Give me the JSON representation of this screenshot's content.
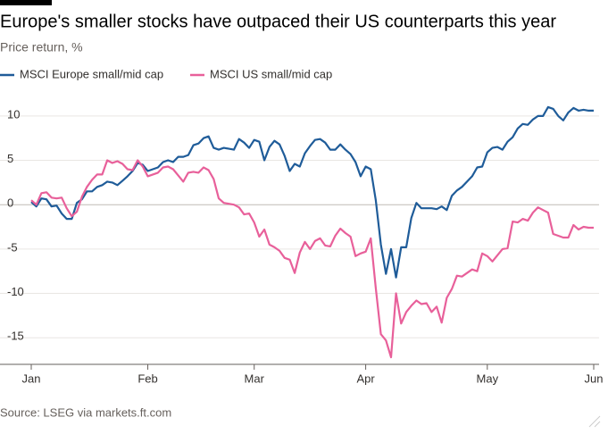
{
  "chart_data": {
    "type": "line",
    "title": "Europe's smaller stocks have outpaced their US counterparts this year",
    "subtitle": "Price return, %",
    "source": "Source: LSEG via markets.ft.com",
    "categories": [
      "Jan",
      null,
      null,
      null,
      null,
      null,
      null,
      null,
      null,
      null,
      null,
      null,
      null,
      null,
      null,
      null,
      null,
      null,
      null,
      null,
      null,
      null,
      null,
      "Feb",
      null,
      null,
      null,
      null,
      null,
      null,
      null,
      null,
      null,
      null,
      null,
      null,
      null,
      null,
      null,
      null,
      null,
      null,
      null,
      null,
      "Mar",
      null,
      null,
      null,
      null,
      null,
      null,
      null,
      null,
      null,
      null,
      null,
      null,
      null,
      null,
      null,
      null,
      null,
      null,
      null,
      null,
      null,
      "Apr",
      null,
      null,
      null,
      null,
      null,
      null,
      null,
      null,
      null,
      null,
      null,
      null,
      null,
      null,
      null,
      null,
      null,
      null,
      null,
      null,
      null,
      null,
      null,
      "May",
      null,
      null,
      null,
      null,
      null,
      null,
      null,
      null,
      null,
      null,
      null,
      null,
      null,
      null,
      null,
      null,
      null,
      null,
      null,
      null,
      "Jun"
    ],
    "series": [
      {
        "name": "MSCI Europe small/mid cap",
        "color": "#1f5c99",
        "values": [
          0.3,
          -0.2,
          0.7,
          0.6,
          -0.2,
          -0.1,
          -1,
          -1.6,
          -1.6,
          0.2,
          0.6,
          1.5,
          1.5,
          2,
          2.2,
          2.6,
          2.5,
          2.2,
          2.7,
          3.2,
          3.8,
          4.7,
          4.5,
          3.8,
          4,
          4.2,
          4.8,
          5,
          4.8,
          5.4,
          5.4,
          5.6,
          6.7,
          6.9,
          7.5,
          7.7,
          6.4,
          6.2,
          6.4,
          6.3,
          6.2,
          7.4,
          7,
          6.4,
          7.3,
          7.1,
          5,
          6.5,
          7.2,
          6.8,
          5.5,
          3.8,
          4.6,
          4.3,
          5.8,
          6.6,
          7.3,
          7.4,
          7,
          6.2,
          6.2,
          6.8,
          6.2,
          5.7,
          4.8,
          3.2,
          4.3,
          4,
          0.5,
          -4.5,
          -7.8,
          -5,
          -8.2,
          -4.8,
          -4.8,
          -1.5,
          0.2,
          -0.4,
          -0.4,
          -0.4,
          -0.5,
          -0.2,
          -0.6,
          1,
          1.6,
          2,
          2.6,
          3.2,
          4.2,
          4.3,
          5.9,
          6.4,
          6.5,
          6.2,
          7.1,
          7.6,
          8.6,
          9.1,
          9,
          9.6,
          10,
          10,
          11,
          10.8,
          10,
          9.5,
          10.4,
          10.9,
          10.6,
          10.7,
          10.6,
          10.6
        ]
      },
      {
        "name": "MSCI US small/mid cap",
        "color": "#e8609a",
        "values": [
          0.5,
          0,
          1.3,
          1.4,
          0.8,
          0.7,
          0.8,
          -0.4,
          -1.3,
          -0.8,
          0.9,
          2,
          2.8,
          3.4,
          3.4,
          5,
          4.7,
          4.9,
          4.6,
          4,
          3.9,
          5,
          4.3,
          3.2,
          3.4,
          3.6,
          4.2,
          4.3,
          4,
          3.3,
          2.6,
          3.6,
          3.7,
          3.6,
          4.2,
          3.9,
          2.9,
          0.7,
          0.2,
          0.1,
          0,
          -0.3,
          -1.1,
          -1,
          -2,
          -3.6,
          -2.8,
          -4.5,
          -4.8,
          -5.2,
          -6,
          -6.2,
          -7.7,
          -5.4,
          -4.2,
          -5,
          -4.1,
          -3.8,
          -4.6,
          -4.7,
          -3.5,
          -2.7,
          -3.2,
          -3.6,
          -5.8,
          -5.5,
          -5.3,
          -3.8,
          -9.4,
          -14.6,
          -15.3,
          -17.2,
          -10,
          -13.4,
          -12.1,
          -11.4,
          -10.8,
          -11.2,
          -11.1,
          -12.1,
          -11.5,
          -13.3,
          -10.5,
          -9.5,
          -8,
          -8.1,
          -7.7,
          -7.3,
          -7.5,
          -5.5,
          -5.8,
          -6.4,
          -5.7,
          -5,
          -4.9,
          -1.9,
          -2,
          -1.6,
          -1.8,
          -0.9,
          -0.3,
          -0.6,
          -0.9,
          -3.3,
          -3.5,
          -3.7,
          -3.7,
          -2.3,
          -2.8,
          -2.5,
          -2.6,
          -2.6
        ]
      }
    ],
    "ylim": [
      -18,
      12
    ],
    "yticks": [
      -15,
      -10,
      -5,
      0,
      5,
      10
    ],
    "grid": true
  }
}
